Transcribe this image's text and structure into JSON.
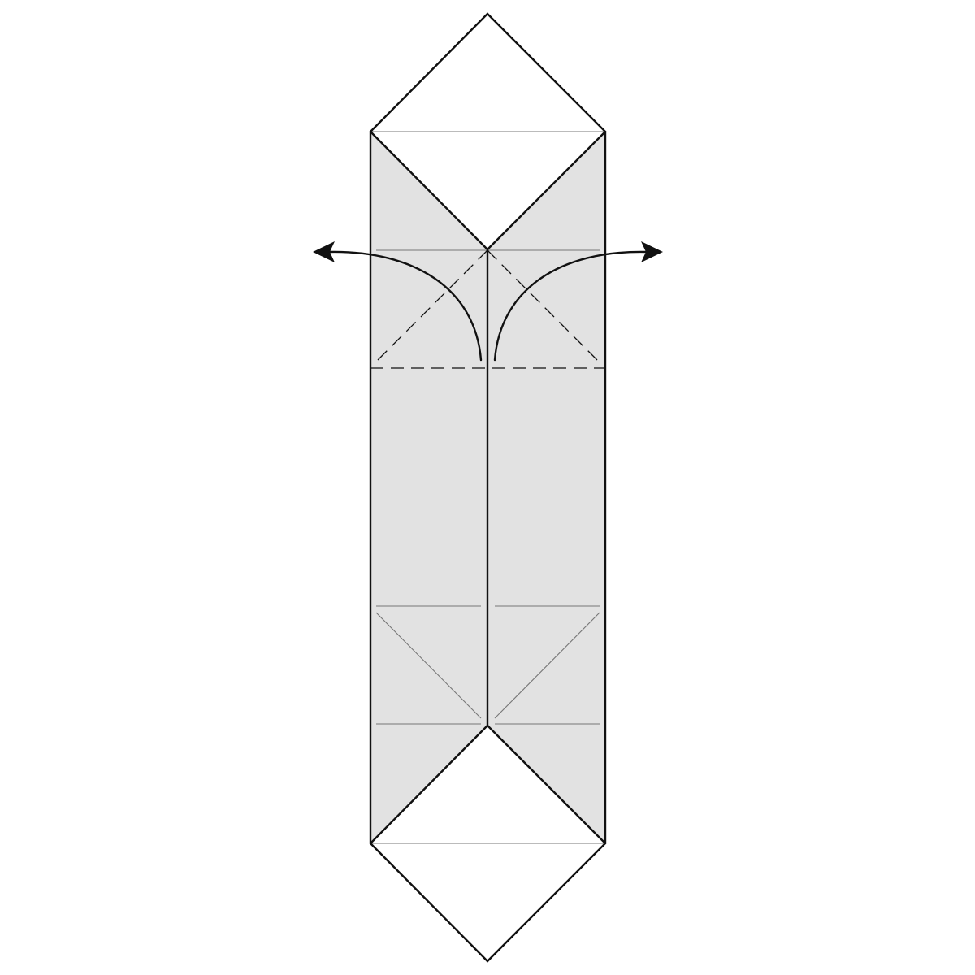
{
  "diagram": {
    "colors": {
      "paper_back": "#e2e2e2",
      "paper_front": "#ffffff",
      "line": "#111111",
      "crease": "#777777",
      "background": "#ffffff"
    },
    "line_types": [
      "solid-edge",
      "thin-crease",
      "valley-fold-dashed"
    ],
    "arrows": [
      {
        "name": "unfold-left-arrow",
        "direction": "left"
      },
      {
        "name": "unfold-right-arrow",
        "direction": "right"
      }
    ]
  }
}
